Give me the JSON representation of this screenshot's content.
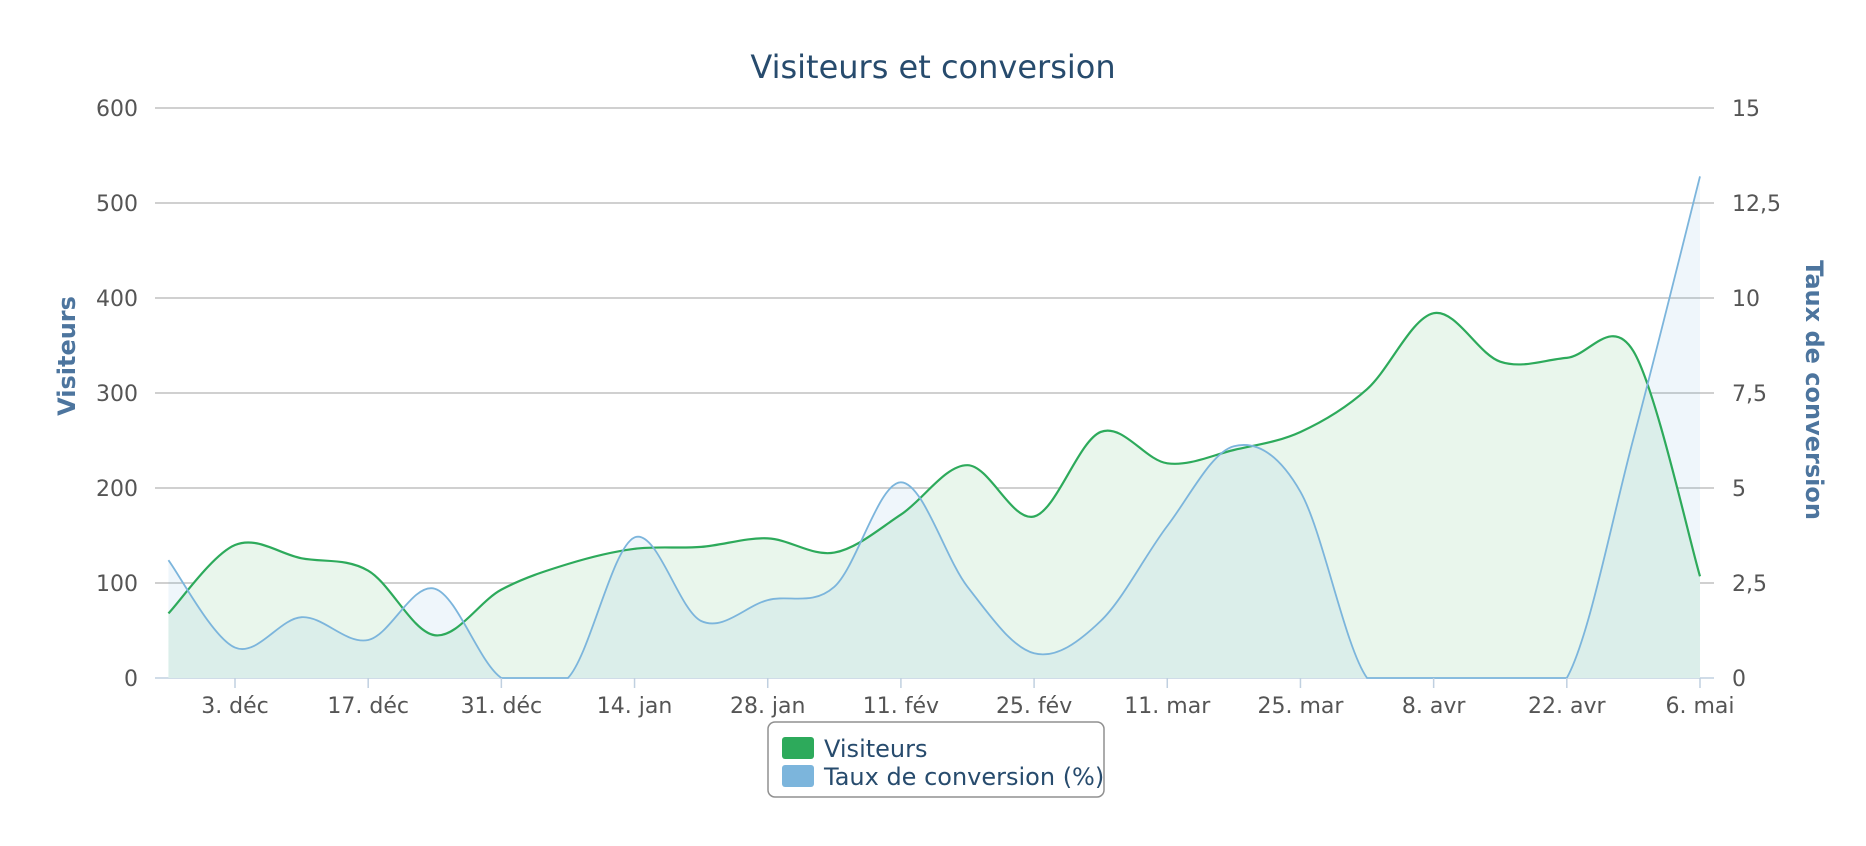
{
  "chart_data": {
    "type": "area",
    "title": "Visiteurs et conversion",
    "x_tick_labels": [
      "3. déc",
      "17. déc",
      "31. déc",
      "14. jan",
      "28. jan",
      "11. fév",
      "25. fév",
      "11. mar",
      "25. mar",
      "8. avr",
      "22. avr",
      "6. mai"
    ],
    "y_left": {
      "label": "Visiteurs",
      "ticks": [
        "0",
        "100",
        "200",
        "300",
        "400",
        "500",
        "600"
      ],
      "range": [
        0,
        600
      ]
    },
    "y_right": {
      "label": "Taux de conversion",
      "ticks": [
        "0",
        "2,5",
        "5",
        "7,5",
        "10",
        "12,5",
        "15"
      ],
      "range": [
        0,
        15
      ]
    },
    "grid": true,
    "legend_position": "bottom-center",
    "series": [
      {
        "name": "Visiteurs",
        "axis": "left",
        "color": "#2daa5b",
        "fill": "#e9f6ec",
        "points": [
          [
            "2012-11-26",
            68
          ],
          [
            "2012-12-03",
            140
          ],
          [
            "2012-12-10",
            126
          ],
          [
            "2012-12-17",
            113
          ],
          [
            "2012-12-24",
            45
          ],
          [
            "2012-12-31",
            93
          ],
          [
            "2013-01-07",
            120
          ],
          [
            "2013-01-14",
            136
          ],
          [
            "2013-01-21",
            138
          ],
          [
            "2013-01-28",
            147
          ],
          [
            "2013-02-04",
            132
          ],
          [
            "2013-02-11",
            172
          ],
          [
            "2013-02-18",
            224
          ],
          [
            "2013-02-25",
            170
          ],
          [
            "2013-03-04",
            259
          ],
          [
            "2013-03-11",
            226
          ],
          [
            "2013-03-18",
            240
          ],
          [
            "2013-03-25",
            259
          ],
          [
            "2013-04-01",
            304
          ],
          [
            "2013-04-08",
            384
          ],
          [
            "2013-04-15",
            333
          ],
          [
            "2013-04-22",
            337
          ],
          [
            "2013-04-29",
            344
          ],
          [
            "2013-05-06",
            107
          ]
        ]
      },
      {
        "name": "Taux de conversion (%)",
        "axis": "right",
        "color": "#7cb5dc",
        "fill": "rgba(124,181,220,0.12)",
        "points": [
          [
            "2012-11-26",
            3.1
          ],
          [
            "2012-12-03",
            0.8
          ],
          [
            "2012-12-10",
            1.6
          ],
          [
            "2012-12-17",
            1.0
          ],
          [
            "2012-12-24",
            2.35
          ],
          [
            "2012-12-31",
            0
          ],
          [
            "2013-01-07",
            0
          ],
          [
            "2013-01-14",
            3.7
          ],
          [
            "2013-01-21",
            1.5
          ],
          [
            "2013-01-28",
            2.05
          ],
          [
            "2013-02-04",
            2.4
          ],
          [
            "2013-02-11",
            5.15
          ],
          [
            "2013-02-18",
            2.4
          ],
          [
            "2013-02-25",
            0.65
          ],
          [
            "2013-03-04",
            1.5
          ],
          [
            "2013-03-11",
            4.0
          ],
          [
            "2013-03-18",
            6.1
          ],
          [
            "2013-03-25",
            4.9
          ],
          [
            "2013-04-01",
            0
          ],
          [
            "2013-04-08",
            0
          ],
          [
            "2013-04-15",
            0
          ],
          [
            "2013-04-22",
            0
          ],
          [
            "2013-04-29",
            6.3
          ],
          [
            "2013-05-06",
            13.2
          ]
        ]
      }
    ]
  }
}
